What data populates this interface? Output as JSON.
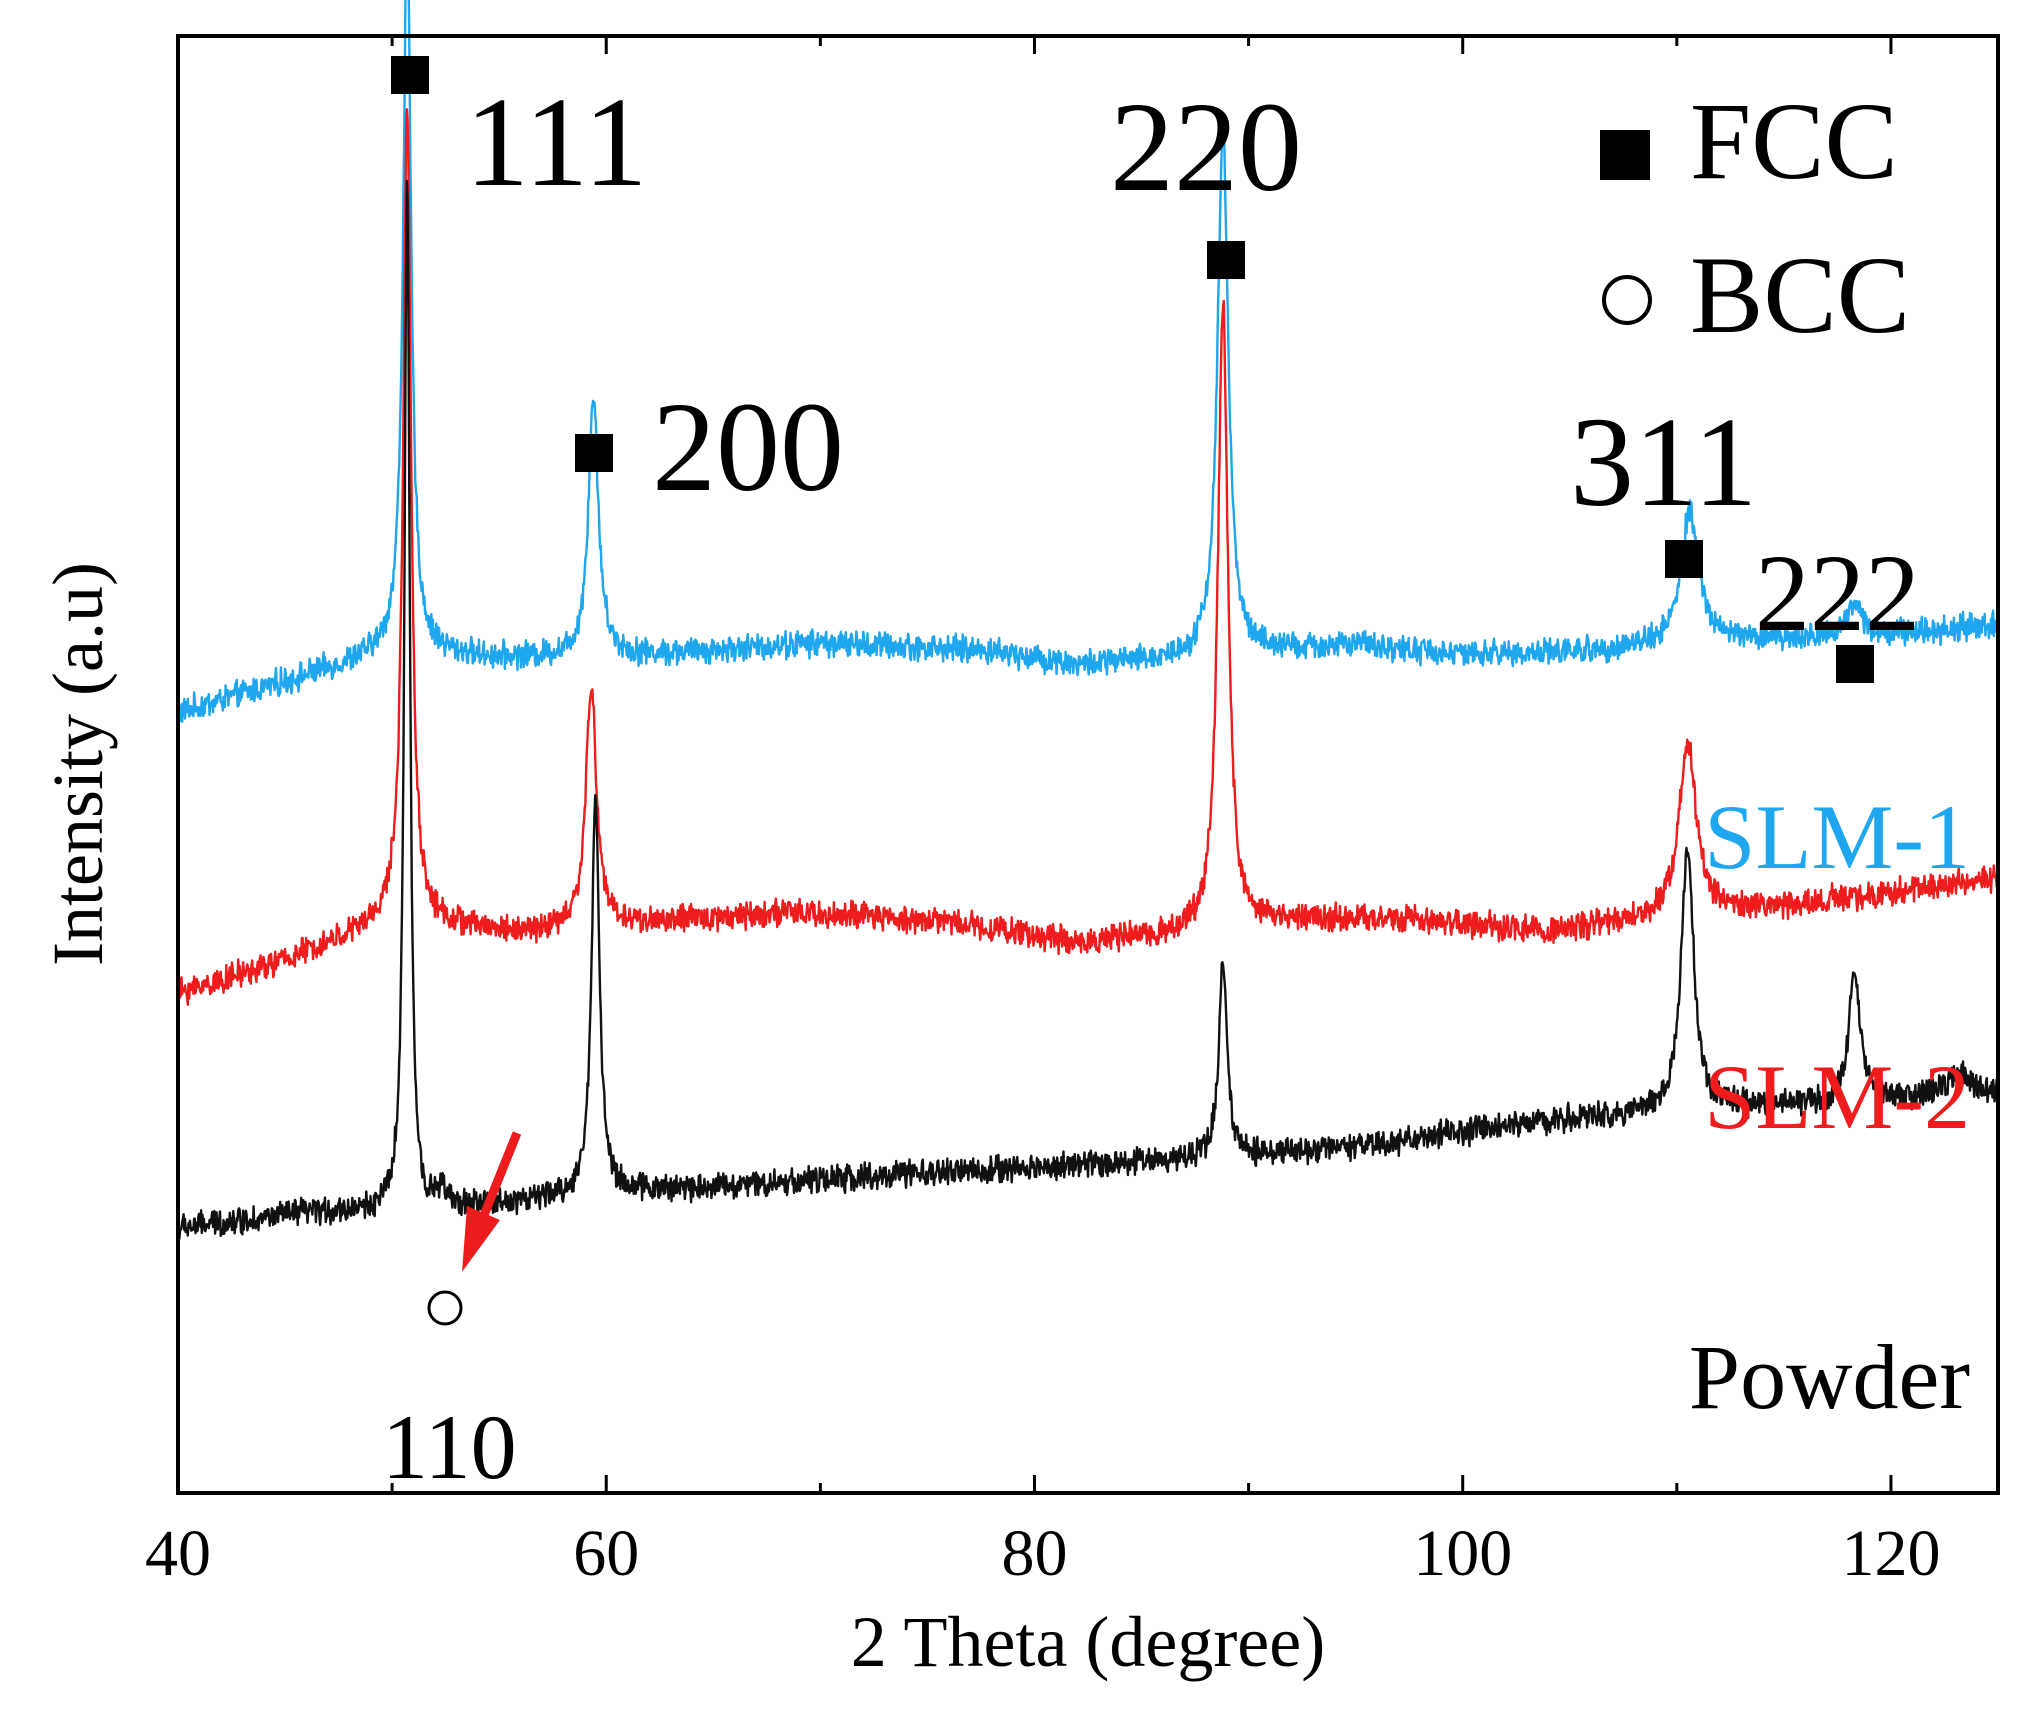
{
  "chart_data": {
    "type": "line",
    "xlabel": "2 Theta (degree)",
    "ylabel": "Intensity (a.u)",
    "xlim": [
      40,
      125
    ],
    "x_ticks": [
      40,
      60,
      80,
      100,
      120
    ],
    "x_tick_labels": [
      "40",
      "60",
      "80",
      "100",
      "120"
    ],
    "y_ticks_shown": false,
    "series": [
      {
        "name": "SLM-1",
        "color": "#1ea7ee",
        "offset": 780,
        "peaks": [
          [
            50.7,
            730,
            0.22
          ],
          [
            59.4,
            260,
            0.28
          ],
          [
            88.8,
            530,
            0.3
          ],
          [
            110.6,
            130,
            0.5
          ],
          [
            118.3,
            35,
            0.45
          ]
        ],
        "baseline": [
          [
            40,
            0
          ],
          [
            44,
            25
          ],
          [
            50,
            62
          ],
          [
            55,
            55
          ],
          [
            62,
            58
          ],
          [
            70,
            70
          ],
          [
            78,
            62
          ],
          [
            82,
            48
          ],
          [
            88,
            55
          ],
          [
            95,
            68
          ],
          [
            100,
            58
          ],
          [
            106,
            62
          ],
          [
            112,
            72
          ],
          [
            118,
            75
          ],
          [
            125,
            88
          ]
        ]
      },
      {
        "name": "SLM-2",
        "color": "#ee1c1c",
        "offset": 500,
        "peaks": [
          [
            50.7,
            820,
            0.22
          ],
          [
            59.3,
            240,
            0.3
          ],
          [
            88.8,
            630,
            0.28
          ],
          [
            110.5,
            175,
            0.5
          ]
        ],
        "baseline": [
          [
            40,
            0
          ],
          [
            44,
            25
          ],
          [
            50,
            72
          ],
          [
            56,
            60
          ],
          [
            62,
            70
          ],
          [
            68,
            80
          ],
          [
            76,
            72
          ],
          [
            82,
            50
          ],
          [
            88,
            60
          ],
          [
            93,
            75
          ],
          [
            98,
            72
          ],
          [
            104,
            62
          ],
          [
            112,
            78
          ],
          [
            118,
            95
          ],
          [
            125,
            115
          ]
        ]
      },
      {
        "name": "Powder",
        "color": "#111111",
        "offset": 265,
        "peaks": [
          [
            50.7,
            1040,
            0.15
          ],
          [
            52.3,
            20,
            0.2
          ],
          [
            59.5,
            400,
            0.22
          ],
          [
            88.8,
            200,
            0.22
          ],
          [
            110.5,
            260,
            0.35
          ],
          [
            118.3,
            130,
            0.32
          ],
          [
            123.2,
            25,
            0.9
          ]
        ],
        "baseline": [
          [
            40,
            0
          ],
          [
            46,
            15
          ],
          [
            52,
            18
          ],
          [
            60,
            35
          ],
          [
            70,
            48
          ],
          [
            78,
            58
          ],
          [
            86,
            68
          ],
          [
            95,
            80
          ],
          [
            103,
            105
          ],
          [
            110,
            118
          ],
          [
            118,
            125
          ],
          [
            125,
            130
          ]
        ]
      }
    ],
    "annotations": {
      "legend": [
        {
          "marker": "filled-square",
          "label": "FCC"
        },
        {
          "marker": "open-circle",
          "label": "BCC"
        }
      ],
      "peak_labels": [
        {
          "label": "111",
          "x": 50.7,
          "phase": "FCC"
        },
        {
          "label": "200",
          "x": 59.4,
          "phase": "FCC"
        },
        {
          "label": "220",
          "x": 88.8,
          "phase": "FCC"
        },
        {
          "label": "311",
          "x": 110.6,
          "phase": "FCC"
        },
        {
          "label": "222",
          "x": 118.3,
          "phase": "FCC"
        },
        {
          "label": "110",
          "x": 52.3,
          "phase": "BCC"
        }
      ],
      "arrow_color": "#ee1c1c"
    }
  }
}
